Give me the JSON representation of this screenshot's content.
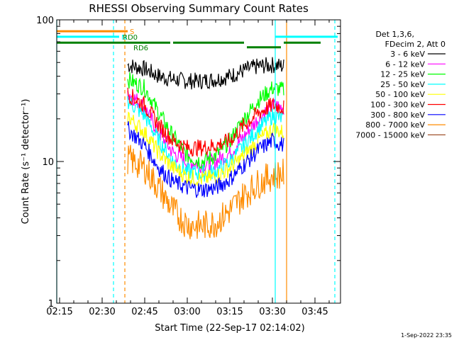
{
  "chart_data": {
    "type": "line",
    "title": "RHESSI Observing Summary Count Rates",
    "xlabel": "Start Time (22-Sep-17 02:14:02)",
    "ylabel": "Count Rate (s⁻¹ detector⁻¹)",
    "yscale": "log",
    "ylim": [
      1,
      100
    ],
    "xlim": [
      "02:14",
      "03:54"
    ],
    "x_ticks": [
      "02:15",
      "02:30",
      "02:45",
      "03:00",
      "03:15",
      "03:30",
      "03:45"
    ],
    "y_ticks": [
      "1",
      "10",
      "100"
    ],
    "legend_header": [
      "Det 1,3,6,",
      "FDecim 2, Att 0"
    ],
    "legend_position": "right",
    "series": [
      {
        "name": "3 - 6 keV",
        "color": "#000000",
        "x": [
          "02:39",
          "02:45",
          "02:50",
          "02:55",
          "03:00",
          "03:05",
          "03:10",
          "03:15",
          "03:20",
          "03:25",
          "03:30",
          "03:34"
        ],
        "values": [
          48,
          45,
          40,
          38,
          37,
          37,
          38,
          40,
          44,
          47,
          48,
          47
        ]
      },
      {
        "name": "6 - 12 keV",
        "color": "#ff00ff",
        "x": [
          "02:39",
          "02:45",
          "02:50",
          "02:55",
          "03:00",
          "03:05",
          "03:10",
          "03:15",
          "03:20",
          "03:25",
          "03:30",
          "03:34"
        ],
        "values": [
          31,
          24,
          16,
          11.5,
          10,
          9.5,
          10,
          11.5,
          15,
          20,
          25,
          24
        ]
      },
      {
        "name": "12 - 25 keV",
        "color": "#00ff00",
        "x": [
          "02:39",
          "02:45",
          "02:50",
          "02:55",
          "03:00",
          "03:05",
          "03:10",
          "03:15",
          "03:20",
          "03:25",
          "03:30",
          "03:34"
        ],
        "values": [
          38,
          33,
          22,
          15,
          11,
          10,
          11,
          14,
          20,
          27,
          33,
          32
        ]
      },
      {
        "name": "25 - 50 keV",
        "color": "#00ffff",
        "x": [
          "02:39",
          "02:45",
          "02:50",
          "02:55",
          "03:00",
          "03:05",
          "03:10",
          "03:15",
          "03:20",
          "03:25",
          "03:30",
          "03:34"
        ],
        "values": [
          27,
          21,
          14,
          10,
          8.5,
          8.2,
          8.5,
          10,
          13,
          17,
          21,
          20
        ]
      },
      {
        "name": "50 - 100 keV",
        "color": "#ffff00",
        "x": [
          "02:39",
          "02:45",
          "02:50",
          "02:55",
          "03:00",
          "03:05",
          "03:10",
          "03:15",
          "03:20",
          "03:25",
          "03:30",
          "03:34"
        ],
        "values": [
          21,
          16,
          11.5,
          9,
          7.8,
          7.5,
          7.8,
          9,
          11,
          14,
          17,
          16
        ]
      },
      {
        "name": "100 - 300 keV",
        "color": "#ff0000",
        "x": [
          "02:39",
          "02:45",
          "02:50",
          "02:55",
          "03:00",
          "03:05",
          "03:10",
          "03:15",
          "03:20",
          "03:25",
          "03:30",
          "03:34"
        ],
        "values": [
          30,
          25,
          18,
          14,
          12.5,
          12.5,
          13,
          14,
          18,
          22,
          25,
          24
        ]
      },
      {
        "name": "300 - 800 keV",
        "color": "#0000ff",
        "x": [
          "02:39",
          "02:45",
          "02:50",
          "02:55",
          "03:00",
          "03:05",
          "03:10",
          "03:15",
          "03:20",
          "03:25",
          "03:30",
          "03:34"
        ],
        "values": [
          17,
          13,
          9,
          7.2,
          6.5,
          6.3,
          6.5,
          7.5,
          9.5,
          12,
          14,
          13
        ]
      },
      {
        "name": "800 - 7000 keV",
        "color": "#ff8c00",
        "x": [
          "02:39",
          "02:45",
          "02:50",
          "02:55",
          "03:00",
          "03:05",
          "03:10",
          "03:15",
          "03:20",
          "03:25",
          "03:30",
          "03:34"
        ],
        "values": [
          10.5,
          9,
          6.5,
          4.5,
          3.6,
          3.5,
          3.7,
          4.5,
          5.8,
          7,
          8,
          8.2
        ]
      },
      {
        "name": "7000 - 15000 keV",
        "color": "#a0522d",
        "x": [],
        "values": []
      }
    ],
    "flags": [
      {
        "label": "S",
        "color": "#ff8c00",
        "x_start": "02:14",
        "x_end": "02:39",
        "level": 83
      },
      {
        "label": "N",
        "color": "#00ffff",
        "x_start": "02:14",
        "x_end": "02:36",
        "level": 76
      },
      {
        "label": "",
        "color": "#00ffff",
        "x_start": "03:31",
        "x_end": "03:53",
        "level": 76
      },
      {
        "label": "RD0",
        "color": "#008000",
        "x_start": "02:14",
        "x_end": "02:54",
        "level": 69
      },
      {
        "label": "",
        "color": "#008000",
        "x_start": "02:55",
        "x_end": "03:20",
        "level": 69
      },
      {
        "label": "",
        "color": "#008000",
        "x_start": "03:34",
        "x_end": "03:47",
        "level": 69
      },
      {
        "label": "RD6",
        "color": "#008000",
        "x_start": "03:21",
        "x_end": "03:33",
        "level": 64
      }
    ],
    "vlines": [
      {
        "x": "02:14",
        "color": "#00ffff",
        "style": "solid"
      },
      {
        "x": "02:34",
        "color": "#00ffff",
        "style": "dashed"
      },
      {
        "x": "02:38",
        "color": "#ff8c00",
        "style": "dashed"
      },
      {
        "x": "03:31",
        "color": "#00ffff",
        "style": "solid"
      },
      {
        "x": "03:35",
        "color": "#ff8c00",
        "style": "solid"
      },
      {
        "x": "03:52",
        "color": "#00ffff",
        "style": "dashed"
      }
    ],
    "grid": false
  },
  "footer": {
    "timestamp": "1-Sep-2022 23:35"
  }
}
